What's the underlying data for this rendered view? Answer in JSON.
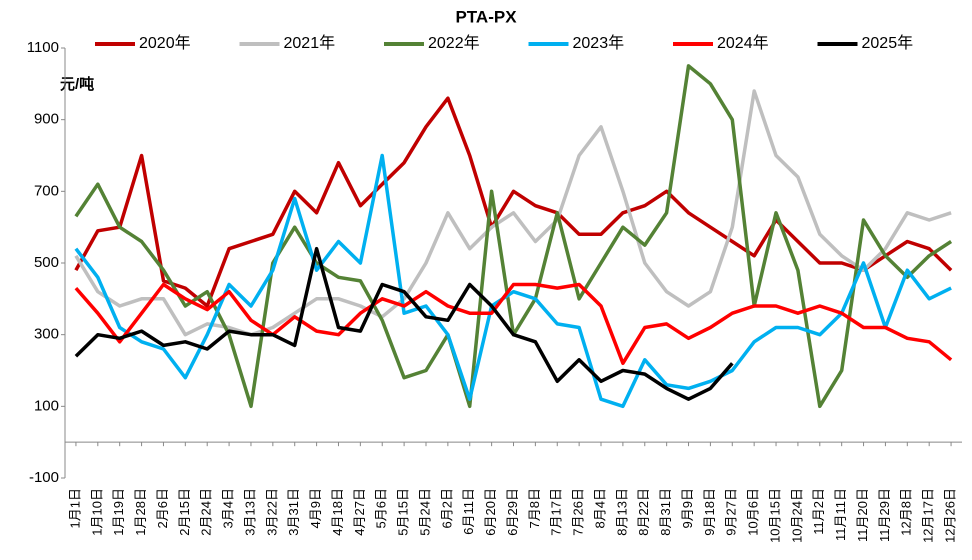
{
  "chart_data": {
    "type": "line",
    "title": "PTA-PX",
    "y_unit": "元/吨",
    "categories": [
      "1月1日",
      "1月10日",
      "1月19日",
      "1月28日",
      "2月6日",
      "2月15日",
      "2月24日",
      "3月4日",
      "3月13日",
      "3月22日",
      "3月31日",
      "4月9日",
      "4月18日",
      "4月27日",
      "5月6日",
      "5月15日",
      "5月24日",
      "6月2日",
      "6月11日",
      "6月20日",
      "6月29日",
      "7月8日",
      "7月17日",
      "7月26日",
      "8月4日",
      "8月13日",
      "8月22日",
      "8月31日",
      "9月9日",
      "9月18日",
      "9月27日",
      "10月6日",
      "10月15日",
      "10月24日",
      "11月2日",
      "11月11日",
      "11月20日",
      "11月29日",
      "12月8日",
      "12月17日",
      "12月26日"
    ],
    "series": [
      {
        "name": "2020年",
        "color": "#c00000",
        "values": [
          480,
          590,
          600,
          800,
          450,
          430,
          380,
          540,
          560,
          580,
          700,
          640,
          780,
          660,
          720,
          780,
          880,
          960,
          800,
          600,
          700,
          660,
          640,
          580,
          580,
          640,
          660,
          700,
          640,
          600,
          560,
          520,
          620,
          560,
          500,
          500,
          480,
          520,
          560,
          540,
          480
        ]
      },
      {
        "name": "2021年",
        "color": "#bfbfbf",
        "values": [
          520,
          420,
          380,
          400,
          400,
          300,
          330,
          320,
          300,
          320,
          360,
          400,
          400,
          380,
          350,
          400,
          500,
          640,
          540,
          600,
          640,
          560,
          620,
          800,
          880,
          700,
          500,
          420,
          380,
          420,
          600,
          980,
          800,
          740,
          580,
          520,
          480,
          540,
          640,
          620,
          640
        ]
      },
      {
        "name": "2022年",
        "color": "#548235",
        "values": [
          630,
          720,
          600,
          560,
          480,
          380,
          420,
          300,
          100,
          500,
          600,
          500,
          460,
          450,
          340,
          180,
          200,
          300,
          100,
          700,
          300,
          400,
          640,
          400,
          500,
          600,
          550,
          640,
          1050,
          1000,
          900,
          380,
          640,
          480,
          100,
          200,
          620,
          520,
          460,
          520,
          560
        ]
      },
      {
        "name": "2023年",
        "color": "#00b0f0",
        "values": [
          540,
          460,
          320,
          280,
          260,
          180,
          300,
          440,
          380,
          480,
          680,
          480,
          560,
          500,
          800,
          360,
          380,
          300,
          120,
          380,
          420,
          400,
          330,
          320,
          120,
          100,
          230,
          160,
          150,
          170,
          200,
          280,
          320,
          320,
          300,
          360,
          500,
          320,
          480,
          400,
          430
        ]
      },
      {
        "name": "2024年",
        "color": "#ff0000",
        "values": [
          430,
          360,
          280,
          360,
          440,
          400,
          370,
          420,
          340,
          300,
          350,
          310,
          300,
          360,
          400,
          380,
          420,
          380,
          360,
          360,
          440,
          440,
          430,
          440,
          380,
          220,
          320,
          330,
          290,
          320,
          360,
          380,
          380,
          360,
          380,
          360,
          320,
          320,
          290,
          280,
          230
        ]
      },
      {
        "name": "2025年",
        "color": "#000000",
        "values": [
          240,
          300,
          290,
          310,
          270,
          280,
          260,
          310,
          300,
          300,
          270,
          540,
          320,
          310,
          440,
          420,
          350,
          340,
          440,
          380,
          300,
          280,
          170,
          230,
          170,
          200,
          190,
          150,
          120,
          150,
          220,
          null,
          null,
          null,
          null,
          null,
          null,
          null,
          null,
          null,
          null
        ]
      }
    ],
    "ylim": [
      -100,
      1100
    ],
    "yticks": [
      -100,
      100,
      300,
      500,
      700,
      900,
      1100
    ],
    "grid": false
  }
}
